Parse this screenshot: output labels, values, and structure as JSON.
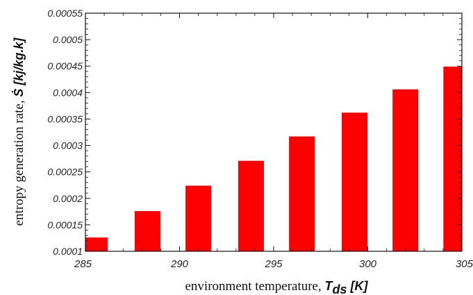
{
  "chart_data": {
    "type": "bar",
    "x": [
      285.5,
      288.3,
      291.0,
      293.8,
      296.5,
      299.3,
      302.0,
      304.7
    ],
    "values": [
      0.000126,
      0.000176,
      0.000224,
      0.000271,
      0.000317,
      0.000362,
      0.000406,
      0.000449
    ],
    "xlim": [
      285,
      305
    ],
    "ylim": [
      0.0001,
      0.00055
    ],
    "xticks": [
      "285",
      "290",
      "295",
      "300",
      "305"
    ],
    "yticks": [
      "0.0001",
      "0.00015",
      "0.0002",
      "0.00025",
      "0.0003",
      "0.00035",
      "0.0004",
      "0.00045",
      "0.0005",
      "0.00055"
    ],
    "xlabel": {
      "text": "environment temperature, ",
      "symbol": "T",
      "subscript": "ds",
      "unit": " [K]"
    },
    "ylabel": {
      "text": "entropy generation rate, ",
      "symbol": "Ṡ",
      "unit": " [kj/kg.k]"
    },
    "bar_color": "#ff0000",
    "grid": false,
    "legend": "none"
  }
}
